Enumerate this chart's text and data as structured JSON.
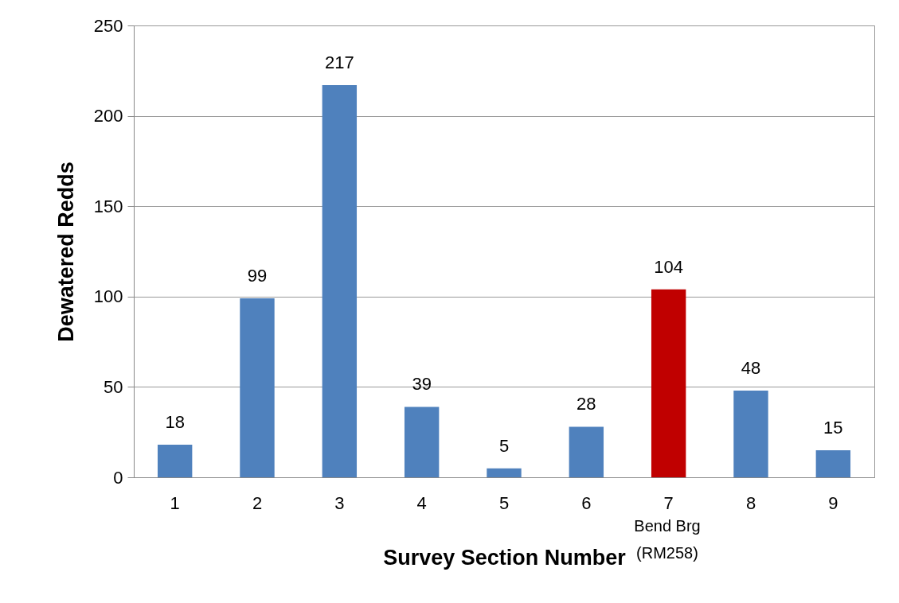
{
  "chart_data": {
    "type": "bar",
    "xlabel": "Survey Section Number",
    "ylabel": "Dewatered Redds",
    "categories": [
      "1",
      "2",
      "3",
      "4",
      "5",
      "6",
      "7",
      "8",
      "9"
    ],
    "values": [
      18,
      99,
      217,
      39,
      5,
      28,
      104,
      48,
      15
    ],
    "colors": [
      "#4f81bd",
      "#4f81bd",
      "#4f81bd",
      "#4f81bd",
      "#4f81bd",
      "#4f81bd",
      "#c00000",
      "#4f81bd",
      "#4f81bd"
    ],
    "ylim": [
      0,
      250
    ],
    "yticks": [
      0,
      50,
      100,
      150,
      200,
      250
    ],
    "grid": "y",
    "data_labels": true,
    "legend": false,
    "annotations": [
      "Bend Brg (RM258)"
    ]
  }
}
